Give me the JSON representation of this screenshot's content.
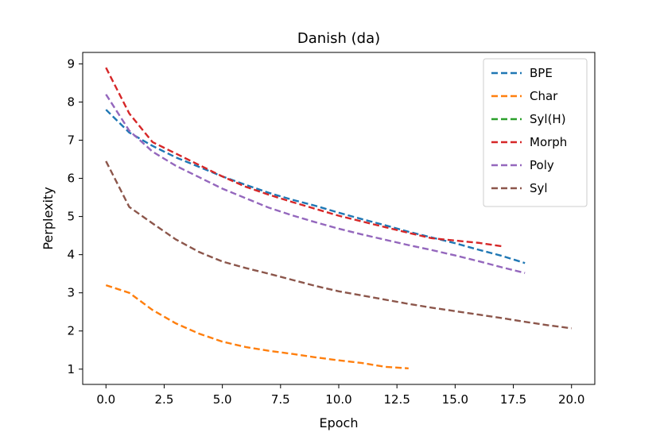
{
  "chart_data": {
    "type": "line",
    "title": "Danish (da)",
    "xlabel": "Epoch",
    "ylabel": "Perplexity",
    "xlim": [
      -1.0,
      21.0
    ],
    "ylim": [
      0.6,
      9.3
    ],
    "xticks": [
      0.0,
      2.5,
      5.0,
      7.5,
      10.0,
      12.5,
      15.0,
      17.5,
      20.0
    ],
    "xtick_labels": [
      "0.0",
      "2.5",
      "5.0",
      "7.5",
      "10.0",
      "12.5",
      "15.0",
      "17.5",
      "20.0"
    ],
    "yticks": [
      1,
      2,
      3,
      4,
      5,
      6,
      7,
      8,
      9
    ],
    "ytick_labels": [
      "1",
      "2",
      "3",
      "4",
      "5",
      "6",
      "7",
      "8",
      "9"
    ],
    "legend_position": "top-right",
    "series": [
      {
        "name": "BPE",
        "color": "#1f77b4",
        "x": [
          0,
          1,
          2,
          3,
          4,
          5,
          6,
          7,
          8,
          9,
          10,
          11,
          12,
          13,
          14,
          15,
          16,
          17,
          18
        ],
        "y": [
          7.8,
          7.2,
          6.85,
          6.55,
          6.3,
          6.05,
          5.83,
          5.62,
          5.44,
          5.28,
          5.1,
          4.93,
          4.77,
          4.6,
          4.45,
          4.3,
          4.13,
          3.97,
          3.78
        ]
      },
      {
        "name": "Char",
        "color": "#ff7f0e",
        "x": [
          0,
          1,
          2,
          3,
          4,
          5,
          6,
          7,
          8,
          9,
          10,
          11,
          12,
          13
        ],
        "y": [
          3.2,
          3.0,
          2.55,
          2.2,
          1.93,
          1.72,
          1.58,
          1.48,
          1.4,
          1.31,
          1.23,
          1.16,
          1.06,
          1.02
        ]
      },
      {
        "name": "Syl(H)",
        "color": "#2ca02c",
        "x": [],
        "y": []
      },
      {
        "name": "Morph",
        "color": "#d62728",
        "x": [
          0,
          1,
          2,
          3,
          4,
          5,
          6,
          7,
          8,
          9,
          10,
          11,
          12,
          13,
          14,
          15,
          16,
          17
        ],
        "y": [
          8.9,
          7.7,
          6.95,
          6.65,
          6.35,
          6.05,
          5.78,
          5.57,
          5.38,
          5.2,
          5.02,
          4.87,
          4.72,
          4.57,
          4.43,
          4.37,
          4.31,
          4.22
        ]
      },
      {
        "name": "Poly",
        "color": "#9467bd",
        "x": [
          0,
          1,
          2,
          3,
          4,
          5,
          6,
          7,
          8,
          9,
          10,
          11,
          12,
          13,
          14,
          15,
          16,
          17,
          18
        ],
        "y": [
          8.2,
          7.25,
          6.7,
          6.33,
          6.03,
          5.73,
          5.48,
          5.23,
          5.03,
          4.85,
          4.68,
          4.53,
          4.39,
          4.25,
          4.12,
          3.98,
          3.83,
          3.67,
          3.52
        ]
      },
      {
        "name": "Syl",
        "color": "#8c564b",
        "x": [
          0,
          1,
          2,
          3,
          4,
          5,
          6,
          7,
          8,
          9,
          10,
          11,
          12,
          13,
          14,
          15,
          16,
          17,
          18,
          19,
          20
        ],
        "y": [
          6.45,
          5.25,
          4.82,
          4.4,
          4.07,
          3.82,
          3.65,
          3.5,
          3.34,
          3.18,
          3.04,
          2.93,
          2.82,
          2.71,
          2.61,
          2.52,
          2.43,
          2.34,
          2.24,
          2.15,
          2.07
        ]
      }
    ]
  }
}
